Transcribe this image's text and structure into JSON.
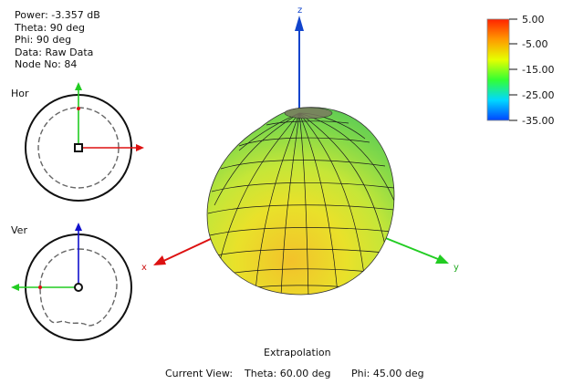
{
  "info": {
    "power": "Power: -3.357 dB",
    "theta": "Theta: 90 deg",
    "phi": "Phi: 90 deg",
    "data": "Data: Raw Data",
    "node": "Node No: 84"
  },
  "panels": {
    "hor_label": "Hor",
    "ver_label": "Ver"
  },
  "axes": {
    "x": "x",
    "y": "y",
    "z": "z"
  },
  "scale": {
    "labels": [
      "5.00",
      "-5.00",
      "-15.00",
      "-25.00",
      "-35.00"
    ],
    "colors": [
      "#ff2200",
      "#ff9900",
      "#e6ff00",
      "#33ff33",
      "#00d8ff",
      "#0044ff"
    ]
  },
  "footer": {
    "title": "Extrapolation",
    "view_label": "Current View:",
    "theta": "Theta: 60.00 deg",
    "phi": "Phi: 45.00 deg"
  }
}
